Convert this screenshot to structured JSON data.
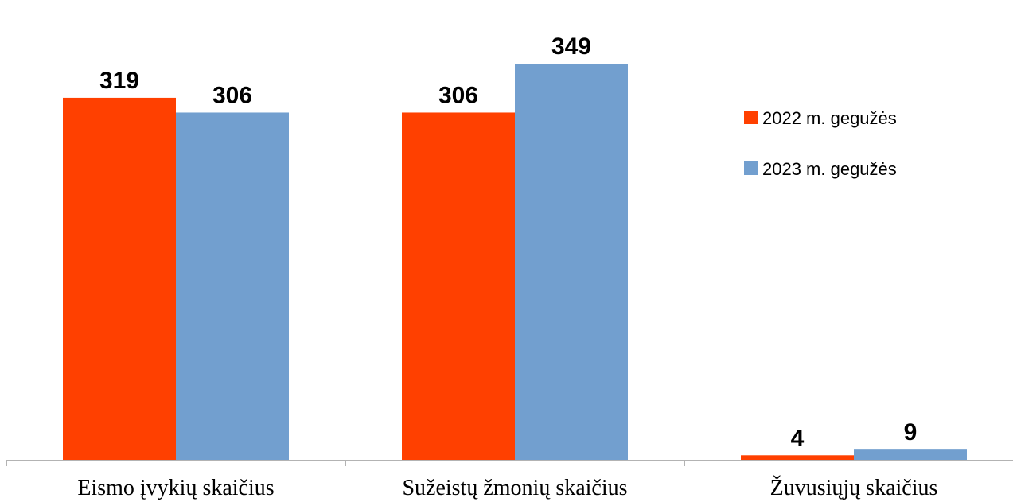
{
  "chart_data": {
    "type": "bar",
    "categories": [
      "Eismo įvykių skaičius",
      "Sužeistų žmonių skaičius",
      "Žuvusiųjų skaičius"
    ],
    "series": [
      {
        "name": "2022 m. gegužės",
        "values": [
          319,
          306,
          4
        ],
        "color": "#FF4000"
      },
      {
        "name": "2023 m. gegužės",
        "values": [
          306,
          349,
          9
        ],
        "color": "#729FCF"
      }
    ],
    "ylim": [
      0,
      400
    ],
    "grid": false,
    "legend": "right",
    "show_data_labels": true
  }
}
